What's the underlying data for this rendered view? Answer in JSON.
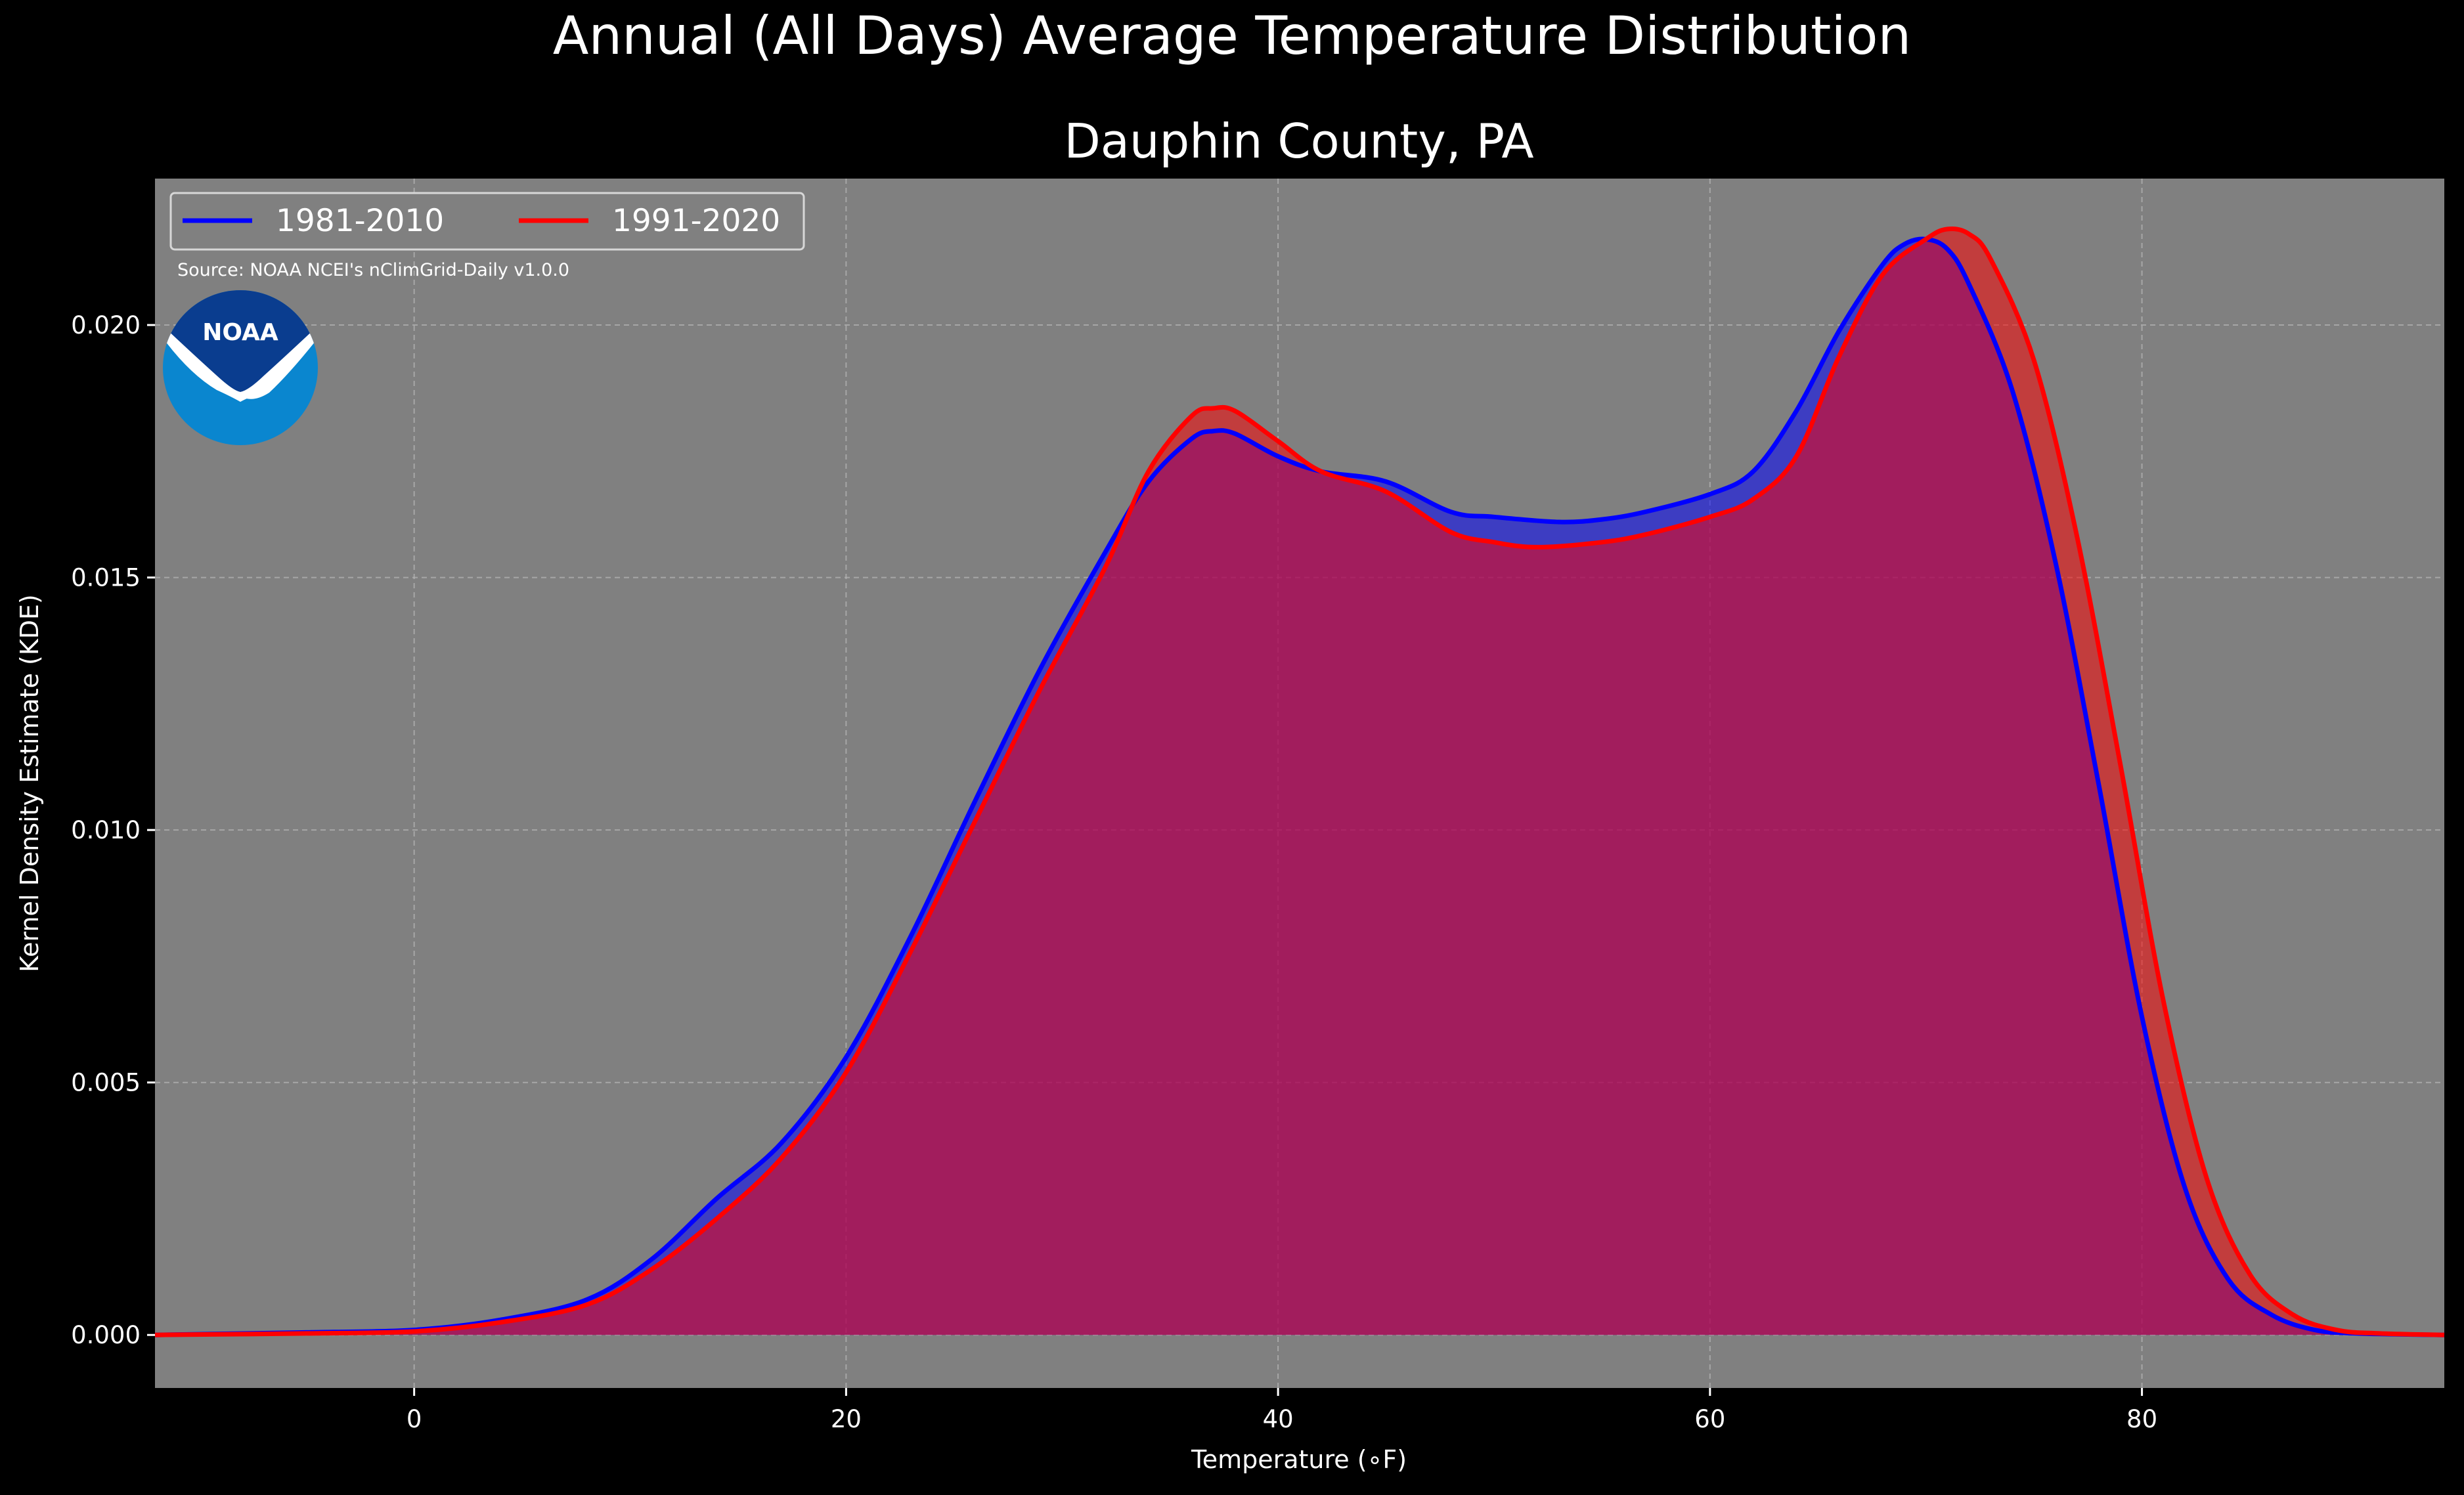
{
  "suptitle": "Annual (All Days) Average Temperature Distribution",
  "source": "Source: NOAA NCEI's nClimGrid-Daily v1.0.0",
  "logo_text": "NOAA",
  "colors": {
    "figure_bg": "#000000",
    "axes_bg": "#808080",
    "series_1981": "#0000ff",
    "series_1991": "#ff0000",
    "text": "#ffffff",
    "logo_dark": "#0a3d8f",
    "logo_light": "#0a86cf"
  },
  "chart_data": {
    "type": "area",
    "title": "Dauphin County, PA",
    "xlabel": "Temperature (∘F)",
    "ylabel": "Kernel Density Estimate (KDE)",
    "xlim": [
      -12,
      94
    ],
    "ylim": [
      -0.00105,
      0.0229
    ],
    "xticks": [
      0,
      20,
      40,
      60,
      80
    ],
    "xtick_labels": [
      "0",
      "20",
      "40",
      "60",
      "80"
    ],
    "yticks": [
      0,
      0.005,
      0.01,
      0.015,
      0.02
    ],
    "ytick_labels": [
      "0.000",
      "0.005",
      "0.010",
      "0.015",
      "0.020"
    ],
    "grid": true,
    "legend_position": "top-left",
    "series": [
      {
        "name": "1981-2010",
        "color": "#0000ff",
        "x": [
          -12,
          -5,
          0,
          4,
          8,
          11,
          14,
          17,
          20,
          23,
          26,
          29,
          32,
          34,
          36,
          37,
          38,
          40,
          42,
          45,
          48,
          50,
          53,
          55,
          57,
          60,
          62,
          64,
          66,
          68,
          69,
          70,
          71,
          72,
          74,
          76,
          78,
          80,
          82,
          84,
          86,
          88,
          90,
          94
        ],
        "values": [
          0.0,
          5e-05,
          0.0001,
          0.0003,
          0.0007,
          0.0015,
          0.0027,
          0.0038,
          0.0055,
          0.0079,
          0.0106,
          0.0132,
          0.0155,
          0.0169,
          0.01775,
          0.0179,
          0.01785,
          0.0174,
          0.0171,
          0.0169,
          0.0163,
          0.0162,
          0.0161,
          0.01615,
          0.0163,
          0.01665,
          0.0171,
          0.0183,
          0.0199,
          0.0212,
          0.0216,
          0.0217,
          0.0215,
          0.0208,
          0.0187,
          0.0153,
          0.0109,
          0.0063,
          0.0029,
          0.0011,
          0.0004,
          0.0001,
          3e-05,
          0.0
        ]
      },
      {
        "name": "1991-2020",
        "color": "#ff0000",
        "x": [
          -12,
          -5,
          0,
          4,
          8,
          11,
          14,
          17,
          20,
          23,
          26,
          29,
          32,
          34,
          36,
          37,
          38,
          40,
          42,
          45,
          48,
          50,
          52,
          55,
          57,
          60,
          62,
          64,
          66,
          68,
          70,
          71,
          72,
          73,
          75,
          77,
          79,
          81,
          83,
          85,
          87,
          89,
          91,
          94
        ],
        "values": [
          0.0,
          3e-05,
          7e-05,
          0.00025,
          0.0006,
          0.0013,
          0.0023,
          0.0035,
          0.0052,
          0.0076,
          0.0102,
          0.0128,
          0.0152,
          0.0171,
          0.0182,
          0.01835,
          0.0183,
          0.0177,
          0.0171,
          0.0167,
          0.0159,
          0.0157,
          0.0156,
          0.0157,
          0.01585,
          0.0162,
          0.01655,
          0.0174,
          0.0194,
          0.021,
          0.0217,
          0.0219,
          0.0218,
          0.0213,
          0.0193,
          0.0158,
          0.0113,
          0.0066,
          0.0031,
          0.0012,
          0.0004,
          0.0001,
          3e-05,
          0.0
        ]
      }
    ]
  }
}
